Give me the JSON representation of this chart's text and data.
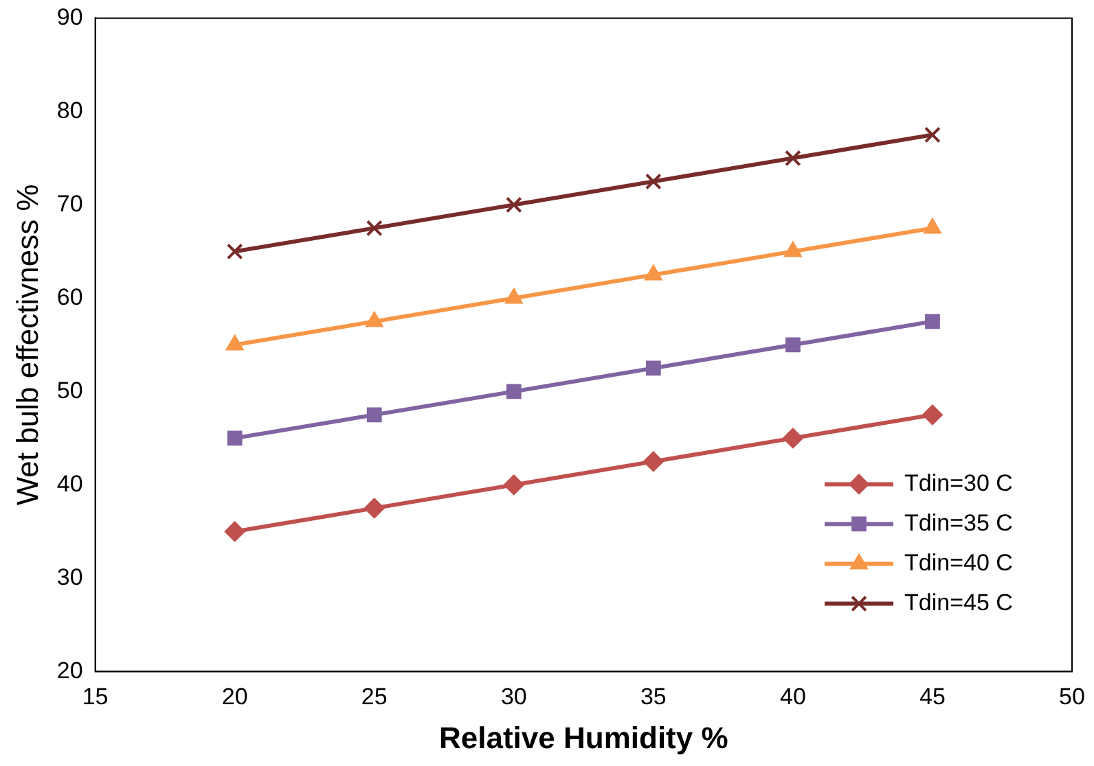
{
  "chart_data": {
    "type": "line",
    "xlabel": "Relative Humidity %",
    "ylabel": "Wet bulb effectivness %",
    "x": [
      20,
      25,
      30,
      35,
      40,
      45
    ],
    "series": [
      {
        "name": "Tdin=30 C",
        "color": "#c0504d",
        "marker": "diamond",
        "values": [
          35,
          37.5,
          40,
          42.5,
          45,
          47.5
        ]
      },
      {
        "name": "Tdin=35 C",
        "color": "#8064a2",
        "marker": "square",
        "values": [
          45,
          47.5,
          50,
          52.5,
          55,
          57.5
        ]
      },
      {
        "name": "Tdin=40 C",
        "color": "#f79646",
        "marker": "triangle",
        "values": [
          55,
          57.5,
          60,
          62.5,
          65,
          67.5
        ]
      },
      {
        "name": "Tdin=45 C",
        "color": "#772c2a",
        "marker": "cross",
        "values": [
          65,
          67.5,
          70,
          72.5,
          75,
          77.5
        ]
      }
    ],
    "xlim": [
      15,
      50
    ],
    "xticks": [
      15,
      20,
      25,
      30,
      35,
      40,
      45,
      50
    ],
    "ylim": [
      20,
      90
    ],
    "yticks": [
      20,
      30,
      40,
      50,
      60,
      70,
      80,
      90
    ],
    "grid": false,
    "legend": "bottom right",
    "line_style": "solid"
  }
}
